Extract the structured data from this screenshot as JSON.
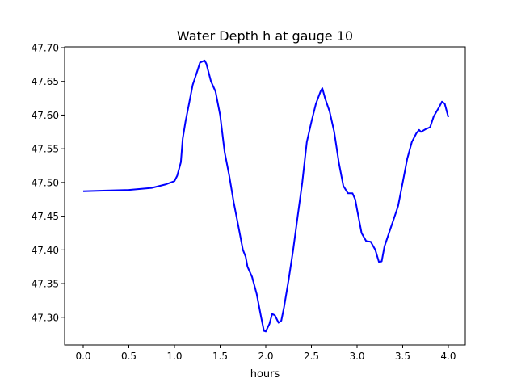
{
  "chart_data": {
    "type": "line",
    "title": "Water Depth h at gauge 10",
    "xlabel": "hours",
    "ylabel": "",
    "xlim": [
      -0.2035,
      4.186
    ],
    "ylim": [
      47.259,
      47.7012
    ],
    "grid": false,
    "xticks": [
      0.0,
      0.5,
      1.0,
      1.5,
      2.0,
      2.5,
      3.0,
      3.5,
      4.0
    ],
    "xtick_labels": [
      "0.0",
      "0.5",
      "1.0",
      "1.5",
      "2.0",
      "2.5",
      "3.0",
      "3.5",
      "4.0"
    ],
    "yticks": [
      47.3,
      47.35,
      47.4,
      47.45,
      47.5,
      47.55,
      47.6,
      47.65,
      47.7
    ],
    "ytick_labels": [
      "47.30",
      "47.35",
      "47.40",
      "47.45",
      "47.50",
      "47.55",
      "47.60",
      "47.65",
      "47.70"
    ],
    "series": [
      {
        "name": "h",
        "color": "#0000ff",
        "x": [
          0,
          0.5,
          0.75,
          0.9,
          1.0,
          1.03,
          1.07,
          1.09,
          1.12,
          1.15,
          1.2,
          1.25,
          1.28,
          1.33,
          1.35,
          1.4,
          1.45,
          1.5,
          1.55,
          1.6,
          1.65,
          1.7,
          1.75,
          1.78,
          1.8,
          1.85,
          1.9,
          1.95,
          1.98,
          2.0,
          2.04,
          2.07,
          2.1,
          2.14,
          2.17,
          2.2,
          2.25,
          2.3,
          2.35,
          2.4,
          2.45,
          2.5,
          2.55,
          2.6,
          2.62,
          2.65,
          2.7,
          2.75,
          2.8,
          2.85,
          2.9,
          2.95,
          2.98,
          3.0,
          3.05,
          3.1,
          3.15,
          3.2,
          3.24,
          3.27,
          3.3,
          3.35,
          3.4,
          3.45,
          3.5,
          3.55,
          3.6,
          3.65,
          3.68,
          3.7,
          3.75,
          3.8,
          3.84,
          3.9,
          3.93,
          3.96,
          4.0
        ],
        "y": [
          47.487,
          47.489,
          47.492,
          47.497,
          47.502,
          47.51,
          47.53,
          47.565,
          47.59,
          47.61,
          47.645,
          47.665,
          47.678,
          47.681,
          47.676,
          47.65,
          47.635,
          47.6,
          47.545,
          47.51,
          47.47,
          47.435,
          47.4,
          47.39,
          47.375,
          47.36,
          47.335,
          47.3,
          47.28,
          47.279,
          47.29,
          47.305,
          47.303,
          47.292,
          47.295,
          47.315,
          47.355,
          47.4,
          47.45,
          47.5,
          47.56,
          47.59,
          47.617,
          47.635,
          47.64,
          47.625,
          47.605,
          47.575,
          47.53,
          47.495,
          47.484,
          47.484,
          47.475,
          47.46,
          47.425,
          47.413,
          47.412,
          47.4,
          47.382,
          47.383,
          47.405,
          47.425,
          47.445,
          47.465,
          47.5,
          47.535,
          47.56,
          47.573,
          47.578,
          47.575,
          47.579,
          47.582,
          47.598,
          47.612,
          47.62,
          47.617,
          47.597
        ]
      }
    ]
  }
}
